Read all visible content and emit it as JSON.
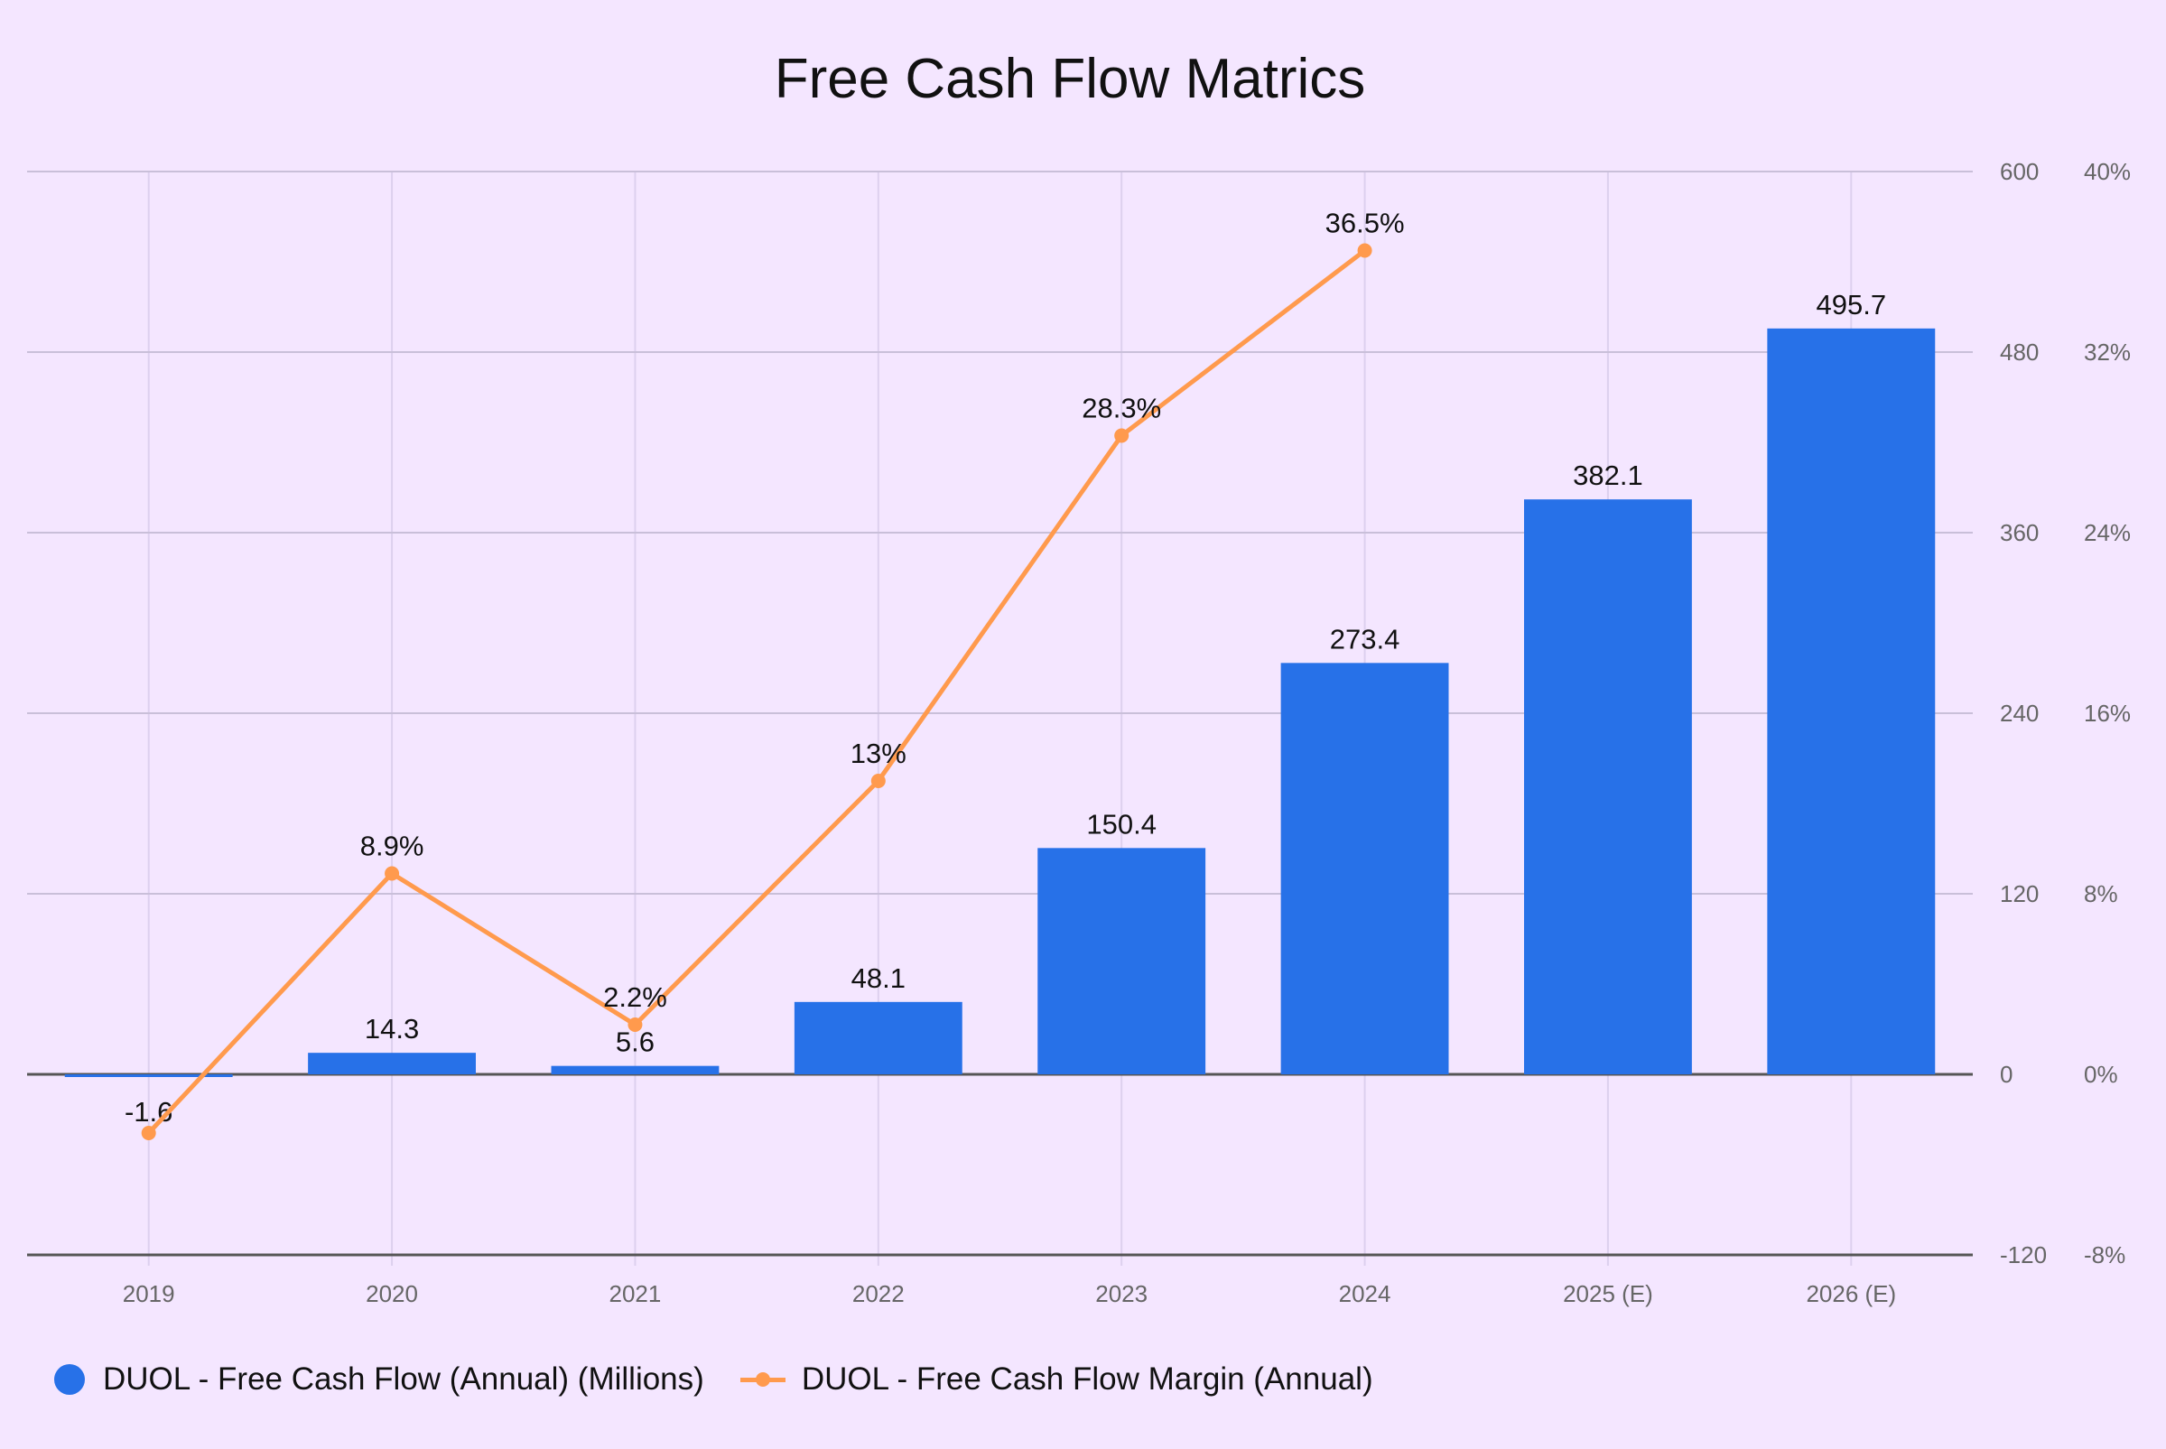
{
  "chart_data": {
    "type": "bar",
    "title": "Free Cash Flow Matrics",
    "categories": [
      "2019",
      "2020",
      "2021",
      "2022",
      "2023",
      "2024",
      "2025 (E)",
      "2026 (E)"
    ],
    "series": [
      {
        "name": "DUOL - Free Cash Flow (Annual) (Millions)",
        "type": "bar",
        "axis": "left",
        "color": "#2771e8",
        "values": [
          -1.6,
          14.3,
          5.6,
          48.1,
          150.4,
          273.4,
          382.1,
          495.7
        ],
        "labels": [
          "-1.6",
          "14.3",
          "5.6",
          "48.1",
          "150.4",
          "273.4",
          "382.1",
          "495.7"
        ]
      },
      {
        "name": "DUOL - Free Cash Flow Margin (Annual)",
        "type": "line",
        "axis": "right",
        "color": "#ff9a4d",
        "values": [
          -2.6,
          8.9,
          2.2,
          13,
          28.3,
          36.5,
          null,
          null
        ],
        "labels": [
          "",
          "8.9%",
          "2.2%",
          "13%",
          "28.3%",
          "36.5%",
          "",
          ""
        ]
      }
    ],
    "y_left": {
      "min": -120,
      "max": 600,
      "ticks": [
        "600",
        "480",
        "360",
        "240",
        "120",
        "0",
        "-120"
      ]
    },
    "y_right": {
      "min": -8,
      "max": 40,
      "ticks": [
        "40%",
        "32%",
        "24%",
        "16%",
        "8%",
        "0%",
        "-8%"
      ]
    },
    "grid": true,
    "legend_position": "bottom-left"
  },
  "legend": {
    "bar_label": "DUOL - Free Cash Flow (Annual) (Millions)",
    "line_label": "DUOL - Free Cash Flow Margin (Annual)"
  }
}
